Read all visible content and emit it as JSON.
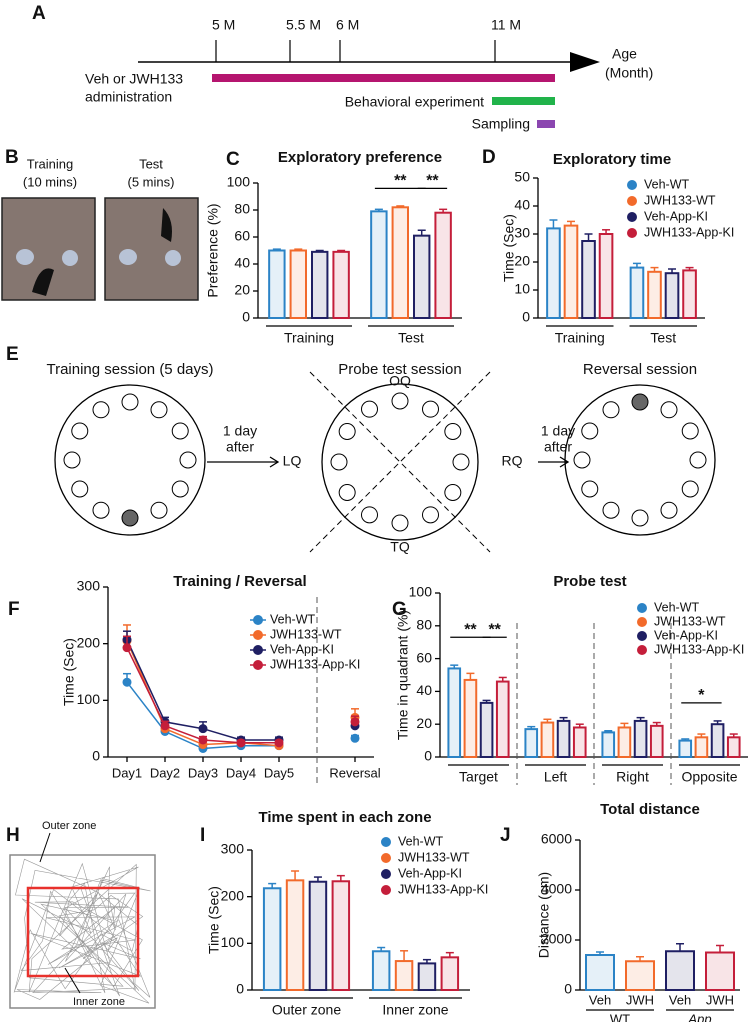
{
  "timeline": {
    "panel": "A",
    "ticks": [
      "5 M",
      "5.5 M",
      "6 M",
      "11 M"
    ],
    "axis_label": [
      "Age",
      "(Month)"
    ],
    "bars": [
      {
        "label": [
          "Veh or JWH133",
          "administration"
        ],
        "color": "#b5156f"
      },
      {
        "label": [
          "Behavioral experiment"
        ],
        "color": "#21b34a"
      },
      {
        "label": [
          "Sampling"
        ],
        "color": "#8b46b0"
      }
    ]
  },
  "photos": {
    "panel": "B",
    "items": [
      [
        "Training",
        "(10 mins)"
      ],
      [
        "Test",
        "(5 mins)"
      ]
    ]
  },
  "water_maze": {
    "panel": "E",
    "sessions": [
      "Training session (5 days)",
      "Probe test session",
      "Reversal session"
    ],
    "arrows": [
      [
        "1 day",
        "after"
      ],
      [
        "1 day",
        "after"
      ]
    ],
    "quadrants": [
      "OQ",
      "LQ",
      "RQ",
      "TQ"
    ]
  },
  "open_field": {
    "panel": "H",
    "zones": [
      "Outer zone",
      "Inner zone"
    ]
  },
  "chart_data": [
    {
      "panel": "C",
      "type": "bar",
      "title": "Exploratory preference",
      "y_label": "Preference (%)",
      "categories": [
        "Training",
        "Test"
      ],
      "series": [
        {
          "color": "#2b83c6",
          "values": [
            50,
            79
          ],
          "errors": [
            1,
            1.5
          ]
        },
        {
          "color": "#f26a2b",
          "values": [
            50,
            82
          ],
          "errors": [
            1,
            1
          ]
        },
        {
          "color": "#1f1f63",
          "values": [
            49,
            61
          ],
          "errors": [
            1,
            4
          ]
        },
        {
          "color": "#c41e3a",
          "values": [
            49,
            78
          ],
          "errors": [
            1,
            2.5
          ]
        }
      ],
      "ylim": [
        0,
        100
      ],
      "yticks": [
        0,
        20,
        40,
        60,
        80,
        100
      ],
      "annotations": [
        "**",
        "**"
      ]
    },
    {
      "panel": "D",
      "type": "bar",
      "title": "Exploratory time",
      "y_label": "Time (Sec)",
      "categories": [
        "Training",
        "Test"
      ],
      "series": [
        {
          "name": "Veh-WT",
          "color": "#2b83c6",
          "values": [
            32,
            18
          ],
          "errors": [
            3,
            1.5
          ]
        },
        {
          "name": "JWH133-WT",
          "color": "#f26a2b",
          "values": [
            33,
            16.5
          ],
          "errors": [
            1.5,
            1.5
          ]
        },
        {
          "name": "Veh-App-KI",
          "color": "#1f1f63",
          "values": [
            27.5,
            16
          ],
          "errors": [
            2.5,
            1.5
          ]
        },
        {
          "name": "JWH133-App-KI",
          "color": "#c41e3a",
          "values": [
            30,
            17
          ],
          "errors": [
            1.5,
            1
          ]
        }
      ],
      "ylim": [
        0,
        50
      ],
      "yticks": [
        0,
        10,
        20,
        30,
        40,
        50
      ]
    },
    {
      "panel": "F",
      "type": "line",
      "title": "Training / Reversal",
      "y_label": "Time (Sec)",
      "categories": [
        "Day1",
        "Day2",
        "Day3",
        "Day4",
        "Day5",
        null,
        "Reversal"
      ],
      "series": [
        {
          "name": "Veh-WT",
          "color": "#2b83c6",
          "values": [
            132,
            45,
            15,
            20,
            20,
            null,
            33
          ],
          "errors": [
            15,
            8,
            3,
            3,
            3,
            null,
            5
          ]
        },
        {
          "name": "JWH133-WT",
          "color": "#f26a2b",
          "values": [
            205,
            50,
            22,
            25,
            20,
            null,
            70
          ],
          "errors": [
            28,
            8,
            5,
            4,
            3,
            null,
            15
          ]
        },
        {
          "name": "Veh-App-KI",
          "color": "#1f1f63",
          "values": [
            207,
            62,
            50,
            30,
            30,
            null,
            55
          ],
          "errors": [
            15,
            8,
            12,
            5,
            5,
            null,
            10
          ]
        },
        {
          "name": "JWH133-App-KI",
          "color": "#c41e3a",
          "values": [
            193,
            55,
            30,
            25,
            25,
            null,
            62
          ],
          "errors": [
            20,
            8,
            6,
            4,
            4,
            null,
            10
          ]
        }
      ],
      "ylim": [
        0,
        300
      ],
      "yticks": [
        0,
        100,
        200,
        300
      ]
    },
    {
      "panel": "G",
      "type": "bar",
      "title": "Probe test",
      "y_label": "Time in quadrant (%)",
      "categories": [
        "Target",
        "Left",
        "Right",
        "Opposite"
      ],
      "series": [
        {
          "name": "Veh-WT",
          "color": "#2b83c6",
          "values": [
            54,
            17,
            15,
            10
          ],
          "errors": [
            2,
            1.5,
            1,
            1
          ]
        },
        {
          "name": "JWH133-WT",
          "color": "#f26a2b",
          "values": [
            47,
            21,
            18,
            12
          ],
          "errors": [
            4,
            2,
            2.5,
            2
          ]
        },
        {
          "name": "Veh-App-KI",
          "color": "#1f1f63",
          "values": [
            33,
            22,
            22,
            20
          ],
          "errors": [
            1.5,
            2,
            2,
            2
          ]
        },
        {
          "name": "JWH133-App-KI",
          "color": "#c41e3a",
          "values": [
            46,
            18,
            19,
            12
          ],
          "errors": [
            2.5,
            2,
            2,
            2
          ]
        }
      ],
      "ylim": [
        0,
        100
      ],
      "yticks": [
        0,
        20,
        40,
        60,
        80,
        100
      ],
      "annotations": [
        "**",
        "**",
        "*"
      ]
    },
    {
      "panel": "I",
      "type": "bar",
      "title": "Time spent in each zone",
      "y_label": "Time (Sec)",
      "categories": [
        "Outer zone",
        "Inner zone"
      ],
      "series": [
        {
          "name": "Veh-WT",
          "color": "#2b83c6",
          "values": [
            218,
            83
          ],
          "errors": [
            10,
            8
          ]
        },
        {
          "name": "JWH133-WT",
          "color": "#f26a2b",
          "values": [
            235,
            62
          ],
          "errors": [
            20,
            22
          ]
        },
        {
          "name": "Veh-App-KI",
          "color": "#1f1f63",
          "values": [
            232,
            57
          ],
          "errors": [
            10,
            8
          ]
        },
        {
          "name": "JWH133-App-KI",
          "color": "#c41e3a",
          "values": [
            233,
            70
          ],
          "errors": [
            12,
            10
          ]
        }
      ],
      "ylim": [
        0,
        300
      ],
      "yticks": [
        0,
        100,
        200,
        300
      ]
    },
    {
      "panel": "J",
      "type": "bar",
      "title": "Total distance",
      "y_label": "Distance (cm)",
      "categories": [
        "Veh",
        "JWH",
        "Veh",
        "JWH"
      ],
      "group_labels": [
        "WT",
        "App"
      ],
      "values": [
        1400,
        1150,
        1550,
        1500
      ],
      "errors": [
        120,
        180,
        300,
        280
      ],
      "colors": [
        "#2b83c6",
        "#f26a2b",
        "#1f1f63",
        "#c41e3a"
      ],
      "ylim": [
        0,
        6000
      ],
      "yticks": [
        0,
        2000,
        4000,
        6000
      ]
    }
  ]
}
